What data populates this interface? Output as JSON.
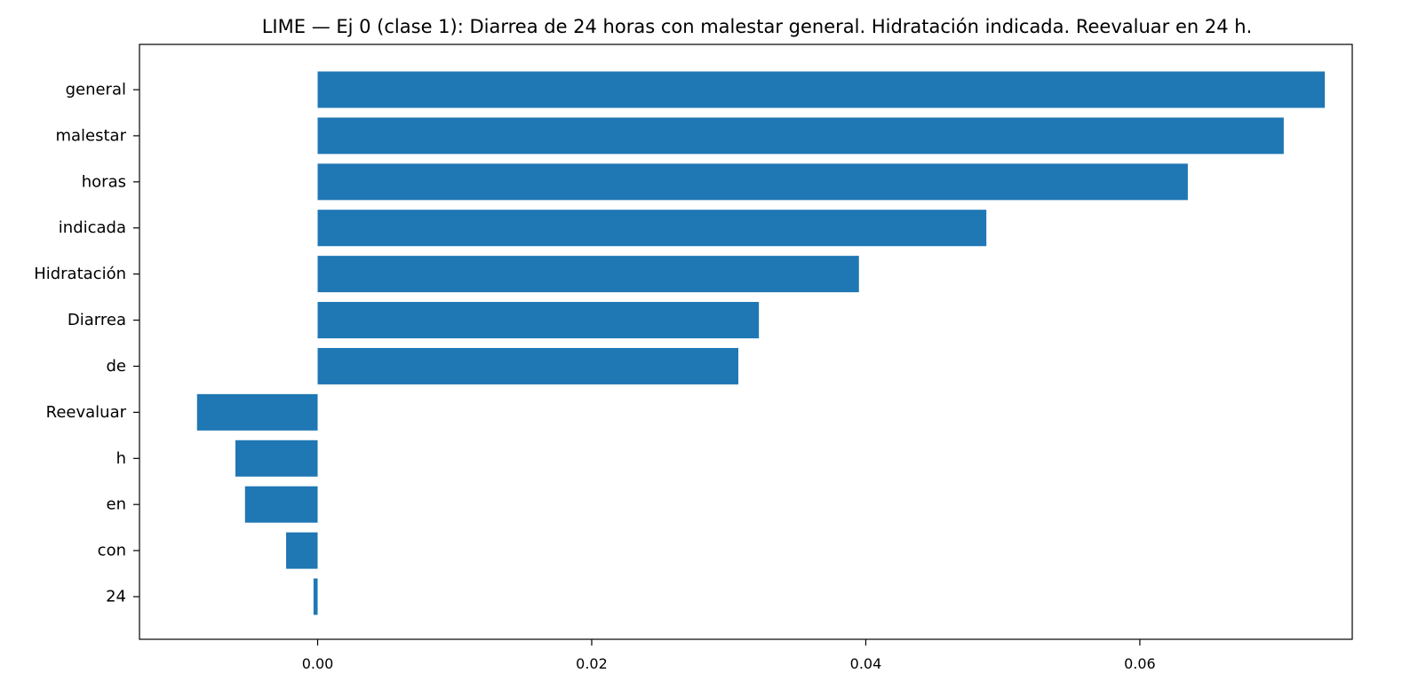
{
  "chart_data": {
    "type": "bar",
    "orientation": "horizontal",
    "title": "LIME — Ej 0 (clase 1): Diarrea de 24 horas con malestar general. Hidratación indicada. Reevaluar en 24 h.",
    "xlabel": "",
    "ylabel": "",
    "categories": [
      "general",
      "malestar",
      "horas",
      "indicada",
      "Hidratación",
      "Diarrea",
      "de",
      "Reevaluar",
      "h",
      "en",
      "con",
      "24"
    ],
    "values": [
      0.0735,
      0.0705,
      0.0635,
      0.0488,
      0.0395,
      0.0322,
      0.0307,
      -0.0088,
      -0.006,
      -0.0053,
      -0.0023,
      -0.0003
    ],
    "xlim": [
      -0.013,
      0.0755
    ],
    "xticks": [
      0.0,
      0.02,
      0.04,
      0.06
    ],
    "xtick_labels": [
      "0.00",
      "0.02",
      "0.04",
      "0.06"
    ],
    "grid": false,
    "colors": {
      "bar": "#1f77b4",
      "axis": "#000000"
    }
  }
}
